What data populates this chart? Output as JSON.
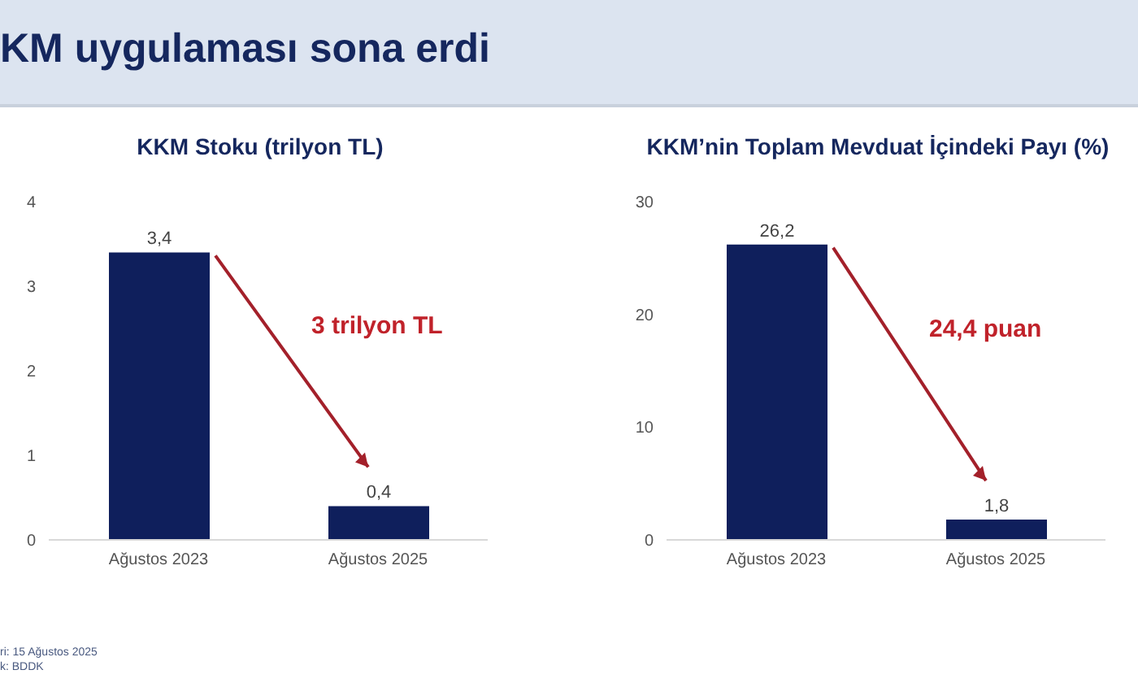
{
  "chart_data": [
    {
      "type": "other",
      "title": "KM uygulaması sona erdi",
      "annotations": [
        "ri: 15 Ağustos 2025",
        "k: BDDK"
      ]
    },
    {
      "type": "bar",
      "title": "KKM Stoku (trilyon TL)",
      "categories": [
        "Ağustos 2023",
        "Ağustos 2025"
      ],
      "values": [
        3.4,
        0.4
      ],
      "value_labels": [
        "3,4",
        "0,4"
      ],
      "color": "#0f1f5c",
      "ylim": [
        0,
        4
      ],
      "yticks": [
        0,
        1,
        2,
        3,
        4
      ],
      "grid": false,
      "annotations": [
        "3 trilyon TL"
      ]
    },
    {
      "type": "bar",
      "title": "KKM’nin Toplam Mevduat İçindeki Payı (%)",
      "categories": [
        "Ağustos 2023",
        "Ağustos 2025"
      ],
      "values": [
        26.2,
        1.8
      ],
      "value_labels": [
        "26,2",
        "1,8"
      ],
      "color": "#0f1f5c",
      "ylim": [
        0,
        30
      ],
      "yticks": [
        0,
        10,
        20,
        30
      ],
      "grid": false,
      "annotations": [
        "24,4 puan"
      ]
    }
  ]
}
